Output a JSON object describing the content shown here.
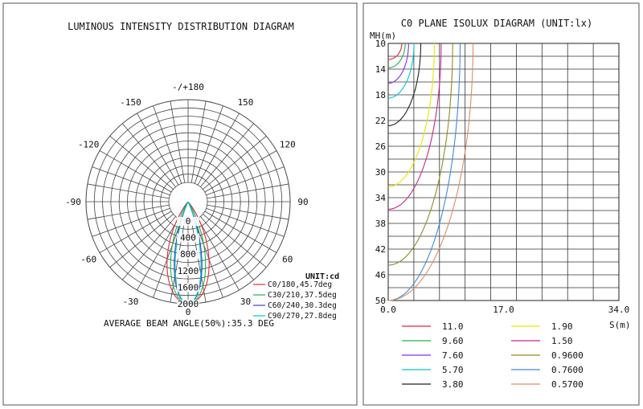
{
  "chart_data": [
    {
      "type": "polar",
      "title": "LUMINOUS INTENSITY DISTRIBUTION DIAGRAM",
      "unit_label": "UNIT:cd",
      "angle_labels": [
        "-/+180",
        "150",
        "120",
        "90",
        "60",
        "30",
        "0",
        "-30",
        "-60",
        "-90",
        "-120",
        "-150"
      ],
      "radial_tick_labels": [
        "0",
        "400",
        "800",
        "1200",
        "1600",
        "2000"
      ],
      "radial_max": 2000,
      "series": [
        {
          "name": "C0/180,45.7deg",
          "color": "#e0283c",
          "peak_cd": 2000,
          "half_width_deg": 23
        },
        {
          "name": "C30/210,37.5deg",
          "color": "#22b14c",
          "peak_cd": 2000,
          "half_width_deg": 19
        },
        {
          "name": "C60/240,30.3deg",
          "color": "#3f3fbf",
          "peak_cd": 2000,
          "half_width_deg": 15
        },
        {
          "name": "C90/270,27.8deg",
          "color": "#00c8c8",
          "peak_cd": 2000,
          "half_width_deg": 14
        }
      ],
      "footer": "AVERAGE BEAM ANGLE(50%):35.3 DEG"
    },
    {
      "type": "line",
      "title": "C0 PLANE ISOLUX DIAGRAM (UNIT:lx)",
      "ylabel": "MH(m)",
      "xlabel": "S(m)",
      "x_tick_labels": [
        "0.0",
        "17.0",
        "34.0"
      ],
      "y_tick_labels": [
        "10",
        "14",
        "18",
        "22",
        "26",
        "30",
        "34",
        "38",
        "42",
        "46",
        "50"
      ],
      "xlim": [
        0,
        34
      ],
      "ylim": [
        10,
        50
      ],
      "series": [
        {
          "name": "11.0",
          "color": "#e0283c",
          "x_max_m": 2.0,
          "bottom_mh": 12.5
        },
        {
          "name": "9.60",
          "color": "#22b14c",
          "x_max_m": 2.5,
          "bottom_mh": 13.8
        },
        {
          "name": "7.60",
          "color": "#8a2be2",
          "x_max_m": 3.0,
          "bottom_mh": 16.2
        },
        {
          "name": "5.70",
          "color": "#00c8c8",
          "x_max_m": 3.8,
          "bottom_mh": 18.5
        },
        {
          "name": "3.80",
          "color": "#222222",
          "x_max_m": 4.8,
          "bottom_mh": 22.8
        },
        {
          "name": "1.90",
          "color": "#e8e800",
          "x_max_m": 6.8,
          "bottom_mh": 32.3
        },
        {
          "name": "1.50",
          "color": "#c8288c",
          "x_max_m": 7.8,
          "bottom_mh": 35.8
        },
        {
          "name": "0.9600",
          "color": "#8c8c28",
          "x_max_m": 9.5,
          "bottom_mh": 44.5
        },
        {
          "name": "0.7600",
          "color": "#3c8cdc",
          "x_max_m": 10.6,
          "bottom_mh": 50.0
        },
        {
          "name": "0.5700",
          "color": "#e08c64",
          "x_max_m": 12.5,
          "bottom_mh": 50.0
        }
      ]
    }
  ]
}
